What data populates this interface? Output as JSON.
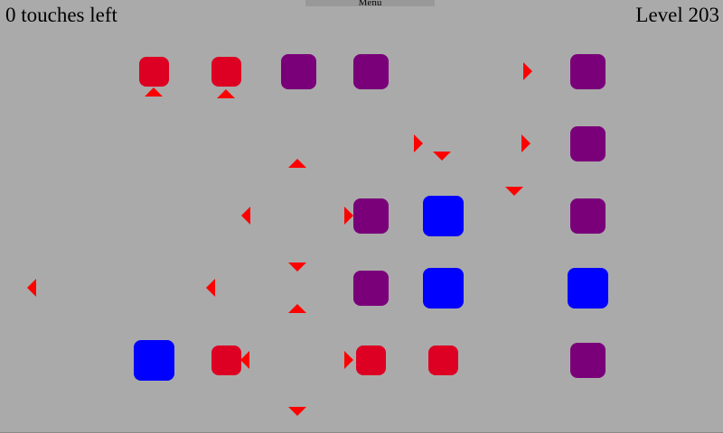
{
  "hud": {
    "touches": "0 touches left",
    "level": "Level 203",
    "menu": "Menu"
  },
  "colors": {
    "background": "#aaaaaa",
    "red": "#dd0022",
    "purple": "#7a007a",
    "blue": "#0000ff",
    "arrow": "#ff0000"
  },
  "board": {
    "pieces": [
      {
        "type": "red",
        "col": 2,
        "row": 0
      },
      {
        "type": "red",
        "col": 3,
        "row": 0
      },
      {
        "type": "purple",
        "col": 4,
        "row": 0
      },
      {
        "type": "purple",
        "col": 5,
        "row": 0
      },
      {
        "type": "purple",
        "col": 8,
        "row": 0
      },
      {
        "type": "purple",
        "col": 8,
        "row": 1
      },
      {
        "type": "purple",
        "col": 5,
        "row": 2
      },
      {
        "type": "blue",
        "col": 6,
        "row": 2
      },
      {
        "type": "purple",
        "col": 8,
        "row": 2
      },
      {
        "type": "purple",
        "col": 5,
        "row": 3
      },
      {
        "type": "blue",
        "col": 6,
        "row": 3
      },
      {
        "type": "blue",
        "col": 8,
        "row": 3
      },
      {
        "type": "blue",
        "col": 2,
        "row": 4
      },
      {
        "type": "red",
        "col": 3,
        "row": 4
      },
      {
        "type": "red",
        "col": 5,
        "row": 4
      },
      {
        "type": "red",
        "col": 6,
        "row": 4
      },
      {
        "type": "purple",
        "col": 8,
        "row": 4
      }
    ],
    "arrows": [
      "up",
      "up",
      "up",
      "up",
      "right",
      "right",
      "right",
      "right",
      "right",
      "down",
      "down",
      "down",
      "down",
      "left",
      "left",
      "left",
      "left"
    ]
  }
}
